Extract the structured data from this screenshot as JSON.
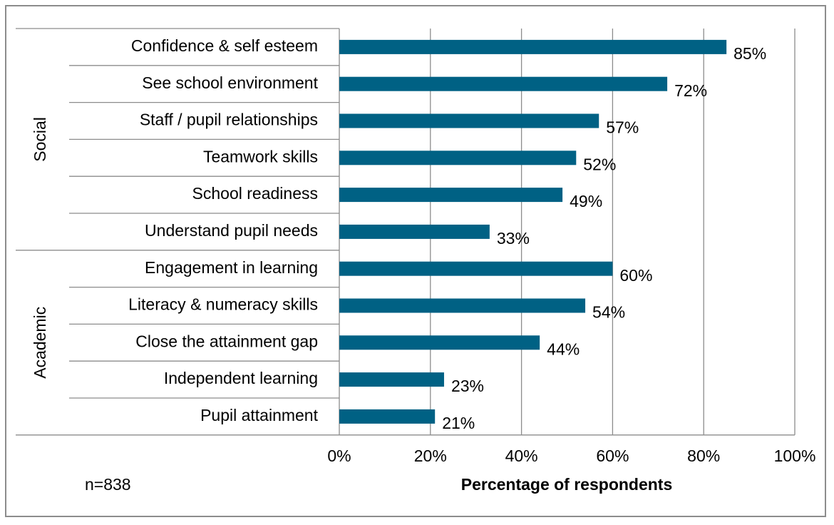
{
  "chart_data": {
    "type": "bar",
    "orientation": "horizontal",
    "title": "",
    "xlabel": "Percentage of respondents",
    "ylabel": "",
    "xlim": [
      0,
      100
    ],
    "x_ticks": [
      0,
      20,
      40,
      60,
      80,
      100
    ],
    "tick_suffix": "%",
    "grid": true,
    "note": "n=838",
    "bar_color": "#006184",
    "groups": [
      {
        "name": "Social",
        "categories": [
          "Confidence & self esteem",
          "See school environment",
          "Staff / pupil relationships",
          "Teamwork skills",
          "School readiness",
          "Understand pupil needs"
        ],
        "values": [
          85,
          72,
          57,
          52,
          49,
          33
        ]
      },
      {
        "name": "Academic",
        "categories": [
          "Engagement in learning",
          "Literacy & numeracy skills",
          "Close the attainment gap",
          "Independent learning",
          "Pupil attainment"
        ],
        "values": [
          60,
          54,
          44,
          23,
          21
        ]
      }
    ]
  }
}
